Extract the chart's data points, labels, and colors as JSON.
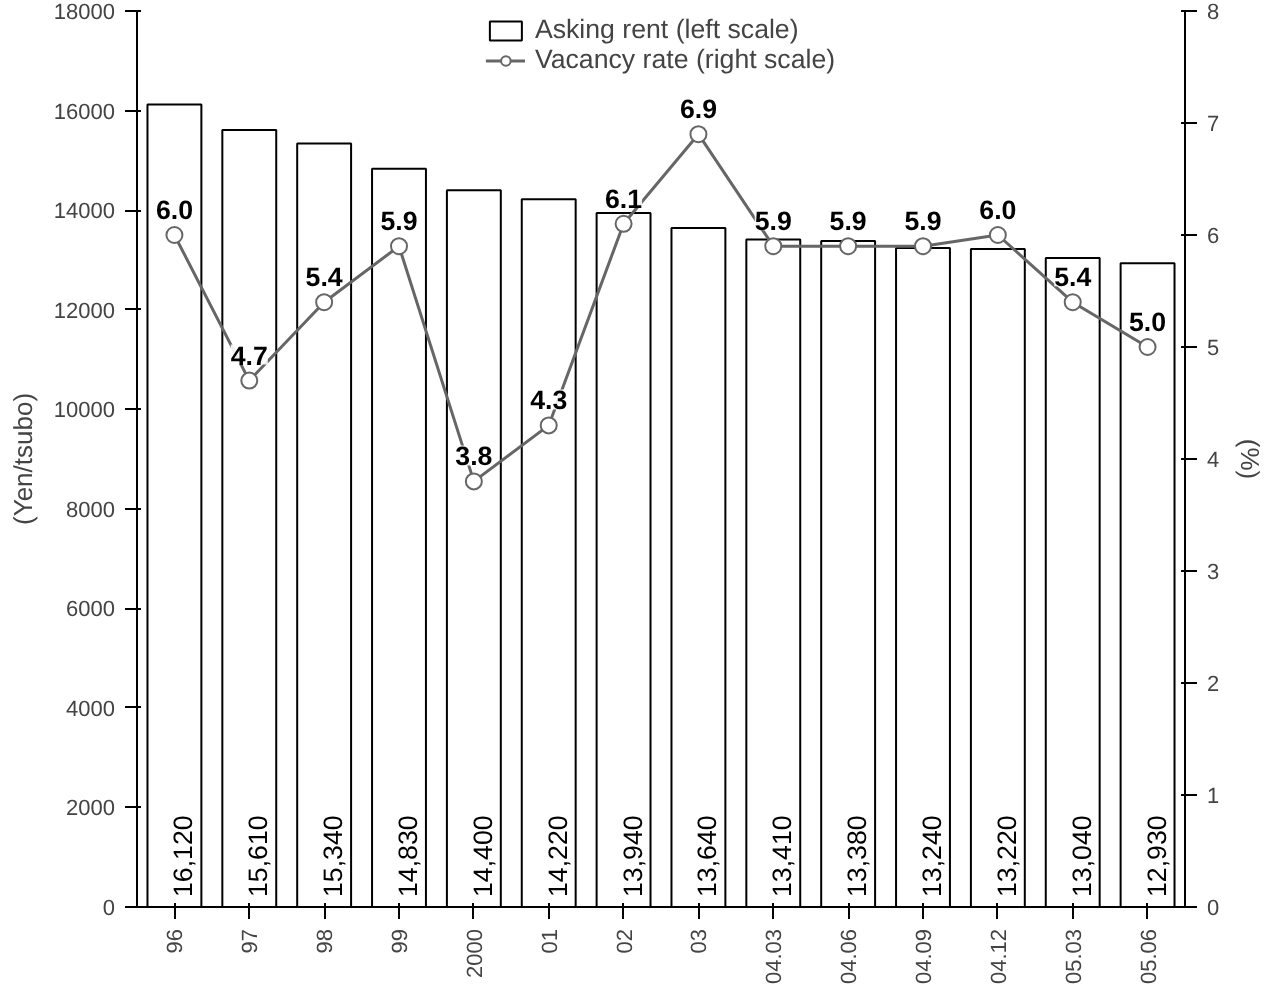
{
  "chart_data": {
    "type": "bar",
    "categories": [
      "96",
      "97",
      "98",
      "99",
      "2000",
      "01",
      "02",
      "03",
      "04.03",
      "04.06",
      "04.09",
      "04.12",
      "05.03",
      "05.06"
    ],
    "ylabel": "(Yen/tsubo)",
    "y2label": "(%)",
    "ylim": [
      0,
      18000
    ],
    "yticks": [
      0,
      2000,
      4000,
      6000,
      8000,
      10000,
      12000,
      14000,
      16000,
      18000
    ],
    "y2lim": [
      0,
      8
    ],
    "y2ticks": [
      0,
      1,
      2,
      3,
      4,
      5,
      6,
      7,
      8
    ],
    "grid": false,
    "legend": "top",
    "marker": "circle",
    "line_style": "solid",
    "series": [
      {
        "name": "Asking rent (left scale)",
        "color": "#ffffff",
        "values": [
          16120,
          15610,
          15340,
          14830,
          14400,
          14220,
          13940,
          13640,
          13410,
          13380,
          13240,
          13220,
          13040,
          12930
        ],
        "value_labels": [
          "16,120",
          "15,610",
          "15,340",
          "14,830",
          "14,400",
          "14,220",
          "13,940",
          "13,640",
          "13,410",
          "13,380",
          "13,240",
          "13,220",
          "13,040",
          "12,930"
        ]
      },
      {
        "name": "Vacancy rate (right scale)",
        "type": "line",
        "axis": "y2",
        "color": "#666666",
        "values": [
          6.0,
          4.7,
          5.4,
          5.9,
          3.8,
          4.3,
          6.1,
          6.9,
          5.9,
          5.9,
          5.9,
          6.0,
          5.4,
          5.0
        ],
        "value_labels": [
          "6.0",
          "4.7",
          "5.4",
          "5.9",
          "3.8",
          "4.3",
          "6.1",
          "6.9",
          "5.9",
          "5.9",
          "5.9",
          "6.0",
          "5.4",
          "5.0"
        ]
      }
    ]
  }
}
